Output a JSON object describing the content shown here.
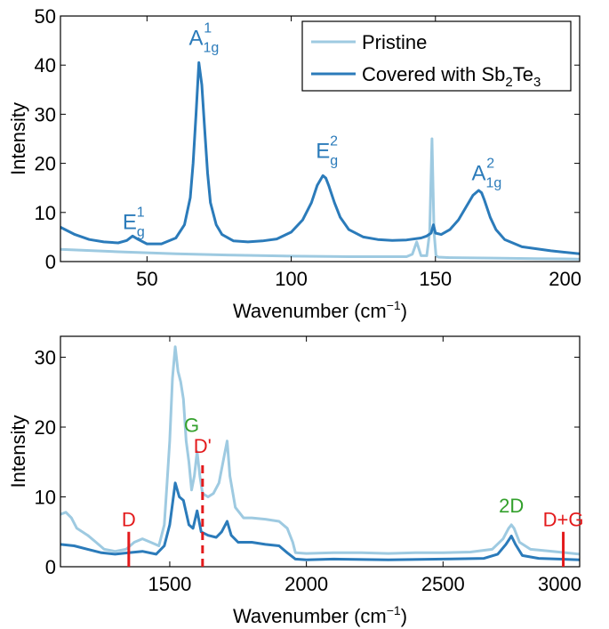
{
  "chart_data": [
    {
      "type": "line",
      "xlabel": "Wavenumber (cm",
      "xlabel_sup": "−1",
      "xlabel_close": ")",
      "ylabel": "Intensity",
      "xlim": [
        20,
        200
      ],
      "ylim": [
        0,
        50
      ],
      "xticks": [
        50,
        100,
        150,
        200
      ],
      "yticks": [
        0,
        10,
        20,
        30,
        40,
        50
      ],
      "legend": {
        "position": "top-right",
        "entries": [
          {
            "label": "Pristine",
            "color": "#9ecae1"
          },
          {
            "label_main": "Covered with Sb",
            "label_sub1": "2",
            "label_mid": "Te",
            "label_sub2": "3",
            "color": "#2b7bba"
          }
        ]
      },
      "series": [
        {
          "name": "Pristine",
          "color": "#9ecae1",
          "x": [
            20,
            40,
            60,
            80,
            100,
            120,
            140,
            142,
            143.5,
            145,
            147,
            148,
            148.8,
            149.5,
            150.2,
            151,
            155,
            170,
            185,
            200
          ],
          "y": [
            2.5,
            2.0,
            1.6,
            1.3,
            1.1,
            1.0,
            1.0,
            1.5,
            4.0,
            1.2,
            1.2,
            6,
            25,
            6,
            1.2,
            0.9,
            0.8,
            0.7,
            0.6,
            0.5
          ]
        },
        {
          "name": "Covered with Sb2Te3",
          "color": "#2b7bba",
          "x": [
            20,
            25,
            30,
            35,
            40,
            43,
            45,
            47,
            50,
            55,
            60,
            63,
            65,
            66,
            67,
            68,
            69,
            70,
            71,
            72,
            74,
            76,
            80,
            85,
            90,
            95,
            100,
            104,
            107,
            109,
            111,
            112,
            113,
            115,
            117,
            120,
            125,
            130,
            135,
            140,
            145,
            147,
            148.5,
            149.3,
            150,
            152,
            155,
            158,
            161,
            163,
            165,
            166,
            167,
            169,
            171,
            174,
            180,
            190,
            200
          ],
          "y": [
            7,
            5.5,
            4.5,
            4.0,
            3.8,
            4.3,
            5.2,
            4.5,
            3.6,
            3.6,
            4.8,
            7.5,
            13,
            20,
            30,
            40.5,
            36,
            27,
            18,
            12,
            7.5,
            5.5,
            4.2,
            4.0,
            4.2,
            4.6,
            6,
            8.5,
            12,
            15.5,
            17.5,
            17,
            15.5,
            12,
            9,
            6.5,
            5.0,
            4.5,
            4.3,
            4.4,
            4.8,
            5.2,
            5.8,
            7.5,
            5.8,
            5.5,
            6.5,
            8.5,
            11.5,
            13.5,
            14.5,
            14,
            12.5,
            9,
            6.5,
            4.5,
            3.0,
            2.2,
            1.6
          ]
        }
      ],
      "annotations": [
        {
          "base": "E",
          "sub": "g",
          "sup": "1",
          "x": 44,
          "y": 5.5,
          "color": "#2b7bba"
        },
        {
          "base": "A",
          "sub": "1g",
          "sup": "1",
          "x": 67,
          "y": 43,
          "color": "#2b7bba"
        },
        {
          "base": "E",
          "sub": "g",
          "sup": "2",
          "x": 111,
          "y": 20,
          "color": "#2b7bba"
        },
        {
          "base": "A",
          "sub": "1g",
          "sup": "2",
          "x": 165,
          "y": 15.5,
          "color": "#2b7bba"
        }
      ]
    },
    {
      "type": "line",
      "xlabel": "Wavenumber (cm",
      "xlabel_sup": "−1",
      "xlabel_close": ")",
      "ylabel": "Intensity",
      "xlim": [
        1100,
        3000
      ],
      "ylim": [
        0,
        33
      ],
      "xticks": [
        1500,
        2000,
        2500,
        3000
      ],
      "yticks": [
        0,
        10,
        20,
        30
      ],
      "series": [
        {
          "name": "Pristine",
          "color": "#9ecae1",
          "x": [
            1100,
            1120,
            1140,
            1160,
            1200,
            1230,
            1260,
            1300,
            1340,
            1370,
            1400,
            1430,
            1460,
            1480,
            1490,
            1500,
            1510,
            1520,
            1530,
            1540,
            1550,
            1560,
            1570,
            1580,
            1590,
            1600,
            1610,
            1620,
            1640,
            1660,
            1680,
            1700,
            1710,
            1720,
            1740,
            1770,
            1800,
            1850,
            1900,
            1930,
            1950,
            1960,
            2000,
            2100,
            2200,
            2300,
            2400,
            2500,
            2600,
            2680,
            2720,
            2740,
            2750,
            2760,
            2780,
            2820,
            2900,
            3000
          ],
          "y": [
            7.5,
            7.8,
            7.0,
            5.5,
            4.5,
            3.5,
            2.5,
            2.2,
            2.5,
            3.5,
            4.0,
            3.5,
            3.0,
            6.0,
            12,
            18,
            27,
            31.5,
            28,
            26.5,
            24,
            18,
            15,
            11,
            13,
            16.5,
            13,
            10.5,
            10,
            10.5,
            12,
            16,
            18,
            13,
            8.5,
            7.0,
            7.0,
            6.8,
            6.5,
            5.5,
            3.5,
            2.0,
            1.9,
            2.0,
            2.0,
            1.9,
            2.0,
            2.0,
            2.1,
            2.5,
            4.0,
            5.5,
            6.0,
            5.5,
            3.5,
            2.5,
            2.2,
            1.8
          ]
        },
        {
          "name": "Covered with Sb2Te3",
          "color": "#2b7bba",
          "x": [
            1100,
            1150,
            1200,
            1250,
            1300,
            1350,
            1400,
            1450,
            1480,
            1500,
            1510,
            1520,
            1535,
            1550,
            1570,
            1585,
            1600,
            1615,
            1640,
            1670,
            1690,
            1710,
            1725,
            1750,
            1800,
            1850,
            1900,
            1930,
            1960,
            2000,
            2100,
            2300,
            2500,
            2650,
            2700,
            2730,
            2750,
            2765,
            2790,
            2850,
            3000
          ],
          "y": [
            3.2,
            3.0,
            2.5,
            2.0,
            1.8,
            2.0,
            2.2,
            1.8,
            3.0,
            6.0,
            9.0,
            12.0,
            10.0,
            9.5,
            6.0,
            5.5,
            8.0,
            5.0,
            4.5,
            4.2,
            5.0,
            6.5,
            4.5,
            3.5,
            3.5,
            3.2,
            3.0,
            2.0,
            1.1,
            1.0,
            1.1,
            1.0,
            1.1,
            1.2,
            1.8,
            3.2,
            4.4,
            3.2,
            1.6,
            1.2,
            1.0
          ]
        }
      ],
      "markers": [
        {
          "label": "D",
          "x": 1350,
          "color": "#e31a1c",
          "dashed": false,
          "label_y": 5.8,
          "y_top": 5.0
        },
        {
          "label": "D'",
          "x": 1620,
          "color": "#e31a1c",
          "dashed": true,
          "label_y": 16.3,
          "y_top": 15.2
        },
        {
          "label": "G",
          "x": 1580,
          "color": "#33a02c",
          "dashed": null,
          "label_y": 19.3,
          "y_top": null
        },
        {
          "label": "2D",
          "x": 2750,
          "color": "#33a02c",
          "dashed": null,
          "label_y": 7.8,
          "y_top": null
        },
        {
          "label": "D+G",
          "x": 2940,
          "color": "#e31a1c",
          "dashed": false,
          "label_y": 5.8,
          "y_top": 5.0
        }
      ]
    }
  ]
}
